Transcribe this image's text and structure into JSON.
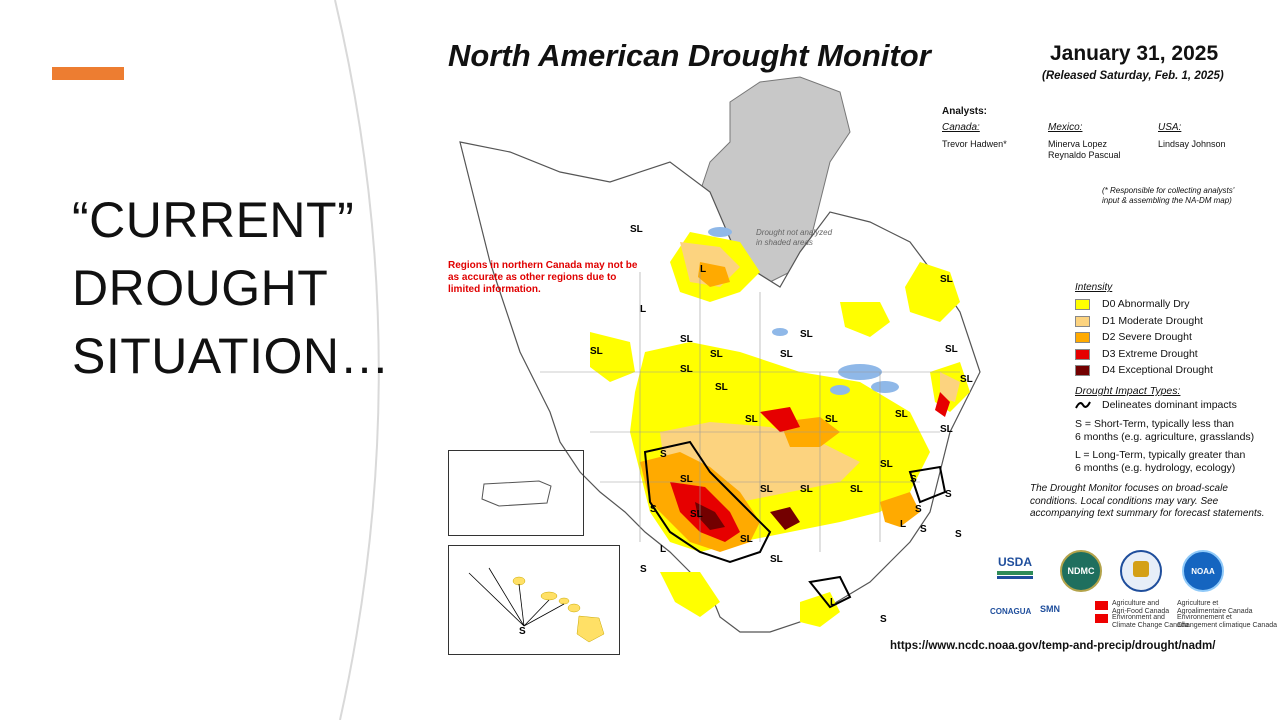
{
  "slide": {
    "title_lines": [
      "“CURRENT”",
      "DROUGHT",
      "SITUATION…"
    ],
    "accent_color": "#ed7d31"
  },
  "map": {
    "title": "North American Drought Monitor",
    "date": "January 31, 2025",
    "released": "(Released Saturday, Feb. 1, 2025)",
    "analysts": {
      "heading": "Analysts:",
      "canada_label": "Canada:",
      "canada_names": "Trevor Hadwen*",
      "mexico_label": "Mexico:",
      "mexico_name1": "Minerva Lopez",
      "mexico_name2": "Reynaldo Pascual",
      "usa_label": "USA:",
      "usa_names": "Lindsay Johnson",
      "note1": "(* Responsible for collecting analysts'",
      "note2": "input & assembling the NA-DM map)"
    },
    "not_analyzed1": "Drought not analyzed",
    "not_analyzed2": "in shaded areas",
    "warning_text": "Regions in northern Canada may not be as accurate as other regions due to limited information.",
    "legend": {
      "title": "Intensity",
      "items": [
        {
          "label": "D0 Abnormally Dry",
          "color": "#ffff00"
        },
        {
          "label": "D1 Moderate Drought",
          "color": "#fcd37f"
        },
        {
          "label": "D2 Severe Drought",
          "color": "#ffaa00"
        },
        {
          "label": "D3 Extreme Drought",
          "color": "#e60000"
        },
        {
          "label": "D4 Exceptional Drought",
          "color": "#730000"
        }
      ],
      "impact_title": "Drought Impact Types:",
      "impact_delineates": "Delineates dominant impacts",
      "short_term_1": "S = Short-Term, typically less than",
      "short_term_2": "6 months (e.g. agriculture, grasslands)",
      "long_term_1": "L = Long-Term, typically greater than",
      "long_term_2": "6 months (e.g. hydrology, ecology)"
    },
    "focus_note": "The Drought Monitor focuses on broad-scale conditions. Local conditions may vary. See accompanying text summary for forecast statements.",
    "url": "https://www.ncdc.noaa.gov/temp-and-precip/drought/nadm/",
    "logos": {
      "usda": "USDA",
      "ndmc": "NDMC",
      "noaa": "NOAA",
      "conagua": "CONAGUA",
      "smn": "SMN",
      "agr_en_1": "Agriculture and",
      "agr_en_2": "Agri-Food Canada",
      "agr_fr_1": "Agriculture et",
      "agr_fr_2": "Agroalimentaire Canada",
      "env_en_1": "Environment and",
      "env_en_2": "Climate Change Canada",
      "env_fr_1": "Environnement et",
      "env_fr_2": "Changement climatique Canada"
    },
    "impact_labels": [
      "SL",
      "L",
      "SL",
      "SL",
      "SL",
      "SL",
      "SL",
      "SL",
      "SL",
      "SL",
      "SL",
      "SL",
      "SL",
      "SL",
      "SL",
      "S",
      "SL",
      "SL",
      "SL",
      "SL",
      "S",
      "L",
      "SL",
      "SL",
      "S",
      "S",
      "S",
      "SL",
      "SL",
      "L",
      "S",
      "L",
      "S",
      "S",
      "L",
      "S",
      "SL"
    ],
    "colors": {
      "land": "#ffffff",
      "water": "#8fb8e8",
      "gray": "#c8c8c8",
      "border": "#555555"
    }
  }
}
